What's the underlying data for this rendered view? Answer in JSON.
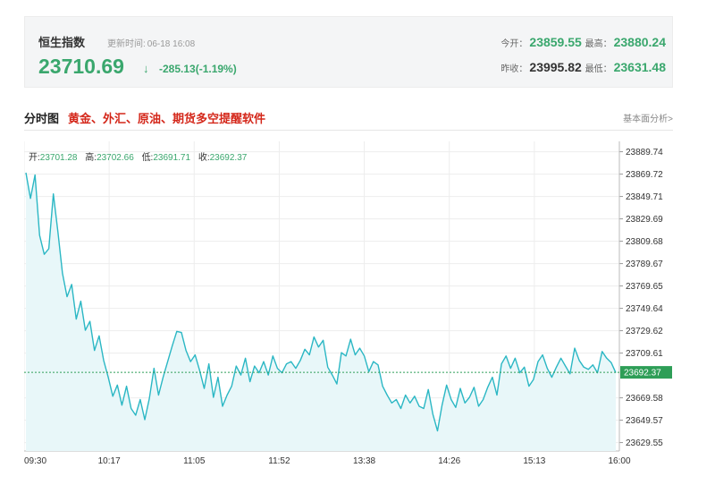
{
  "quote": {
    "name": "恒生指数",
    "time_label": "更新时间:",
    "time": "06-18 16:08",
    "price": "23710.69",
    "arrow": "↓",
    "change": "-285.13(-1.19%)",
    "open_label": "今开：",
    "open": "23859.55",
    "high_label": "最高：",
    "high": "23880.24",
    "prev_close_label": "昨收：",
    "prev_close": "23995.82",
    "low_label": "最低：",
    "low": "23631.48"
  },
  "section": {
    "title": "分时图",
    "ad_text": "黄金、外汇、原油、期货多空提醒软件",
    "basic_link": "基本面分析>"
  },
  "ohlc": {
    "open_label": "开:",
    "open": "23701.28",
    "high_label": "高:",
    "high": "23702.66",
    "low_label": "低:",
    "low": "23691.71",
    "close_label": "收:",
    "close": "23692.37"
  },
  "colors": {
    "line": "#2bb7c4",
    "area": "#e8f7f9",
    "price_green": "#3aa76d",
    "baseline": "#2e9e57",
    "badge": "#2e9e57"
  },
  "chart_data": {
    "type": "area",
    "x_ticks": [
      "09:30",
      "10:17",
      "11:05",
      "11:52",
      "13:38",
      "14:26",
      "15:13",
      "16:00"
    ],
    "y_ticks": [
      23889.74,
      23869.72,
      23849.71,
      23829.69,
      23809.68,
      23789.67,
      23769.65,
      23749.64,
      23729.62,
      23709.61,
      23669.58,
      23649.57,
      23629.55
    ],
    "ylim": [
      23622.0,
      23899.0
    ],
    "current_value": "23692.37",
    "grid": true,
    "series": [
      {
        "values": [
          23871,
          23848,
          23869,
          23815,
          23798,
          23803,
          23852,
          23818,
          23781,
          23760,
          23771,
          23740,
          23756,
          23730,
          23738,
          23712,
          23725,
          23703,
          23688,
          23671,
          23681,
          23663,
          23680,
          23660,
          23654,
          23668,
          23650,
          23669,
          23696,
          23672,
          23688,
          23702,
          23716,
          23729,
          23728,
          23712,
          23702,
          23708,
          23694,
          23678,
          23700,
          23670,
          23688,
          23662,
          23672,
          23680,
          23698,
          23690,
          23705,
          23684,
          23698,
          23692,
          23702,
          23690,
          23707,
          23696,
          23692,
          23700,
          23702,
          23696,
          23703,
          23713,
          23708,
          23724,
          23715,
          23721,
          23697,
          23690,
          23682,
          23710,
          23707,
          23722,
          23708,
          23714,
          23707,
          23693,
          23702,
          23699,
          23680,
          23672,
          23665,
          23668,
          23660,
          23672,
          23665,
          23671,
          23662,
          23660,
          23677,
          23655,
          23640,
          23663,
          23681,
          23668,
          23661,
          23678,
          23665,
          23670,
          23679,
          23662,
          23668,
          23679,
          23688,
          23672,
          23700,
          23707,
          23696,
          23705,
          23692,
          23697,
          23680,
          23686,
          23702,
          23708,
          23696,
          23688,
          23697,
          23705,
          23698,
          23691,
          23714,
          23703,
          23697,
          23695,
          23699,
          23692,
          23711,
          23705,
          23701,
          23692
        ]
      }
    ]
  }
}
